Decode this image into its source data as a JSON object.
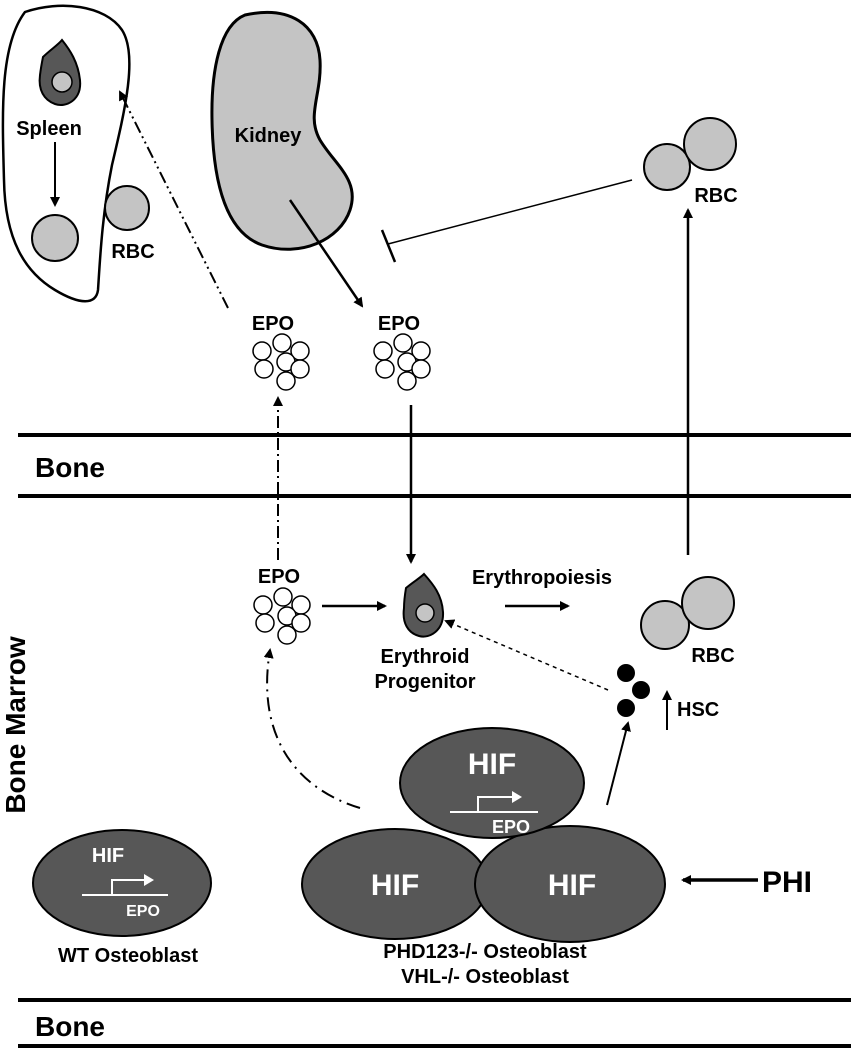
{
  "labels": {
    "spleen": "Spleen",
    "kidney": "Kidney",
    "rbc_spleen": "RBC",
    "rbc_top": "RBC",
    "rbc_marrow": "RBC",
    "epo_left": "EPO",
    "epo_kidney": "EPO",
    "epo_marrow": "EPO",
    "bone_top": "Bone",
    "bone_bottom": "Bone",
    "bone_marrow": "Bone Marrow",
    "erythropoiesis": "Erythropoiesis",
    "erythroid_line1": "Erythroid",
    "erythroid_line2": "Progenitor",
    "hsc": "HSC",
    "hif_top": "HIF",
    "epo_gene_top": "EPO",
    "hif_left": "HIF",
    "hif_right": "HIF",
    "hif_wt": "HIF",
    "epo_gene_wt": "EPO",
    "phi": "PHI",
    "wt_osteoblast": "WT Osteoblast",
    "mutant_line1": "PHD123-/- Osteoblast",
    "mutant_line2": "VHL-/- Osteoblast"
  },
  "colors": {
    "dark_cell": "#575757",
    "organ_fill": "#c4c4c4",
    "rbc_fill": "#c4c4c4",
    "line": "#000000"
  }
}
